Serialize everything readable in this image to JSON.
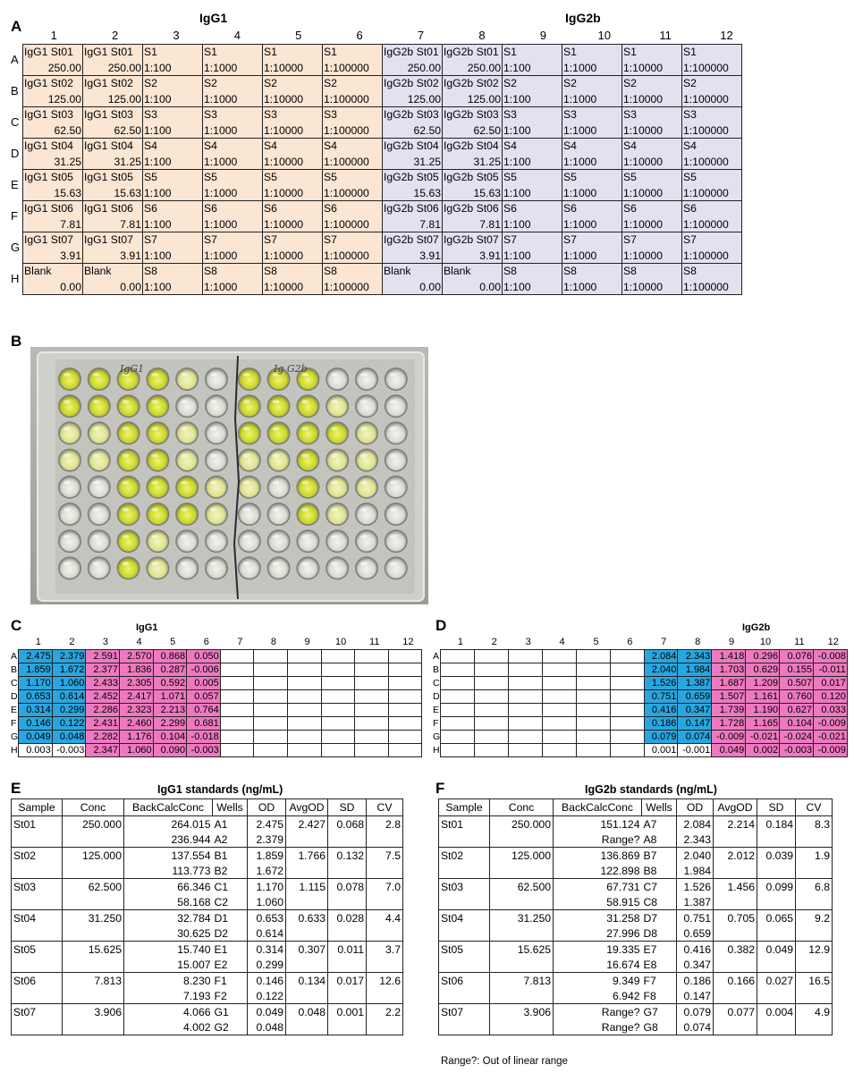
{
  "panel_labels": {
    "A": "A",
    "B": "B",
    "C": "C",
    "D": "D",
    "E": "E",
    "F": "F"
  },
  "plate_layout": {
    "group_left": "IgG1",
    "group_right": "IgG2b",
    "columns": [
      "1",
      "2",
      "3",
      "4",
      "5",
      "6",
      "7",
      "8",
      "9",
      "10",
      "11",
      "12"
    ],
    "rows": [
      {
        "label": "A",
        "cells": [
          [
            "IgG1 St01",
            "250.00"
          ],
          [
            "IgG1 St01",
            "250.00"
          ],
          [
            "S1",
            "1:100"
          ],
          [
            "S1",
            "1:1000"
          ],
          [
            "S1",
            "1:10000"
          ],
          [
            "S1",
            "1:100000"
          ],
          [
            "IgG2b St01",
            "250.00"
          ],
          [
            "IgG2b St01",
            "250.00"
          ],
          [
            "S1",
            "1:100"
          ],
          [
            "S1",
            "1:1000"
          ],
          [
            "S1",
            "1:10000"
          ],
          [
            "S1",
            "1:100000"
          ]
        ]
      },
      {
        "label": "B",
        "cells": [
          [
            "IgG1 St02",
            "125.00"
          ],
          [
            "IgG1 St02",
            "125.00"
          ],
          [
            "S2",
            "1:100"
          ],
          [
            "S2",
            "1:1000"
          ],
          [
            "S2",
            "1:10000"
          ],
          [
            "S2",
            "1:100000"
          ],
          [
            "IgG2b St02",
            "125.00"
          ],
          [
            "IgG2b St02",
            "125.00"
          ],
          [
            "S2",
            "1:100"
          ],
          [
            "S2",
            "1:1000"
          ],
          [
            "S2",
            "1:10000"
          ],
          [
            "S2",
            "1:100000"
          ]
        ]
      },
      {
        "label": "C",
        "cells": [
          [
            "IgG1 St03",
            "62.50"
          ],
          [
            "IgG1 St03",
            "62.50"
          ],
          [
            "S3",
            "1:100"
          ],
          [
            "S3",
            "1:1000"
          ],
          [
            "S3",
            "1:10000"
          ],
          [
            "S3",
            "1:100000"
          ],
          [
            "IgG2b St03",
            "62.50"
          ],
          [
            "IgG2b St03",
            "62.50"
          ],
          [
            "S3",
            "1:100"
          ],
          [
            "S3",
            "1:1000"
          ],
          [
            "S3",
            "1:10000"
          ],
          [
            "S3",
            "1:100000"
          ]
        ]
      },
      {
        "label": "D",
        "cells": [
          [
            "IgG1 St04",
            "31.25"
          ],
          [
            "IgG1 St04",
            "31.25"
          ],
          [
            "S4",
            "1:100"
          ],
          [
            "S4",
            "1:1000"
          ],
          [
            "S4",
            "1:10000"
          ],
          [
            "S4",
            "1:100000"
          ],
          [
            "IgG2b St04",
            "31.25"
          ],
          [
            "IgG2b St04",
            "31.25"
          ],
          [
            "S4",
            "1:100"
          ],
          [
            "S4",
            "1:1000"
          ],
          [
            "S4",
            "1:10000"
          ],
          [
            "S4",
            "1:100000"
          ]
        ]
      },
      {
        "label": "E",
        "cells": [
          [
            "IgG1 St05",
            "15.63"
          ],
          [
            "IgG1 St05",
            "15.63"
          ],
          [
            "S5",
            "1:100"
          ],
          [
            "S5",
            "1:1000"
          ],
          [
            "S5",
            "1:10000"
          ],
          [
            "S5",
            "1:100000"
          ],
          [
            "IgG2b St05",
            "15.63"
          ],
          [
            "IgG2b St05",
            "15.63"
          ],
          [
            "S5",
            "1:100"
          ],
          [
            "S5",
            "1:1000"
          ],
          [
            "S5",
            "1:10000"
          ],
          [
            "S5",
            "1:100000"
          ]
        ]
      },
      {
        "label": "F",
        "cells": [
          [
            "IgG1 St06",
            "7.81"
          ],
          [
            "IgG1 St06",
            "7.81"
          ],
          [
            "S6",
            "1:100"
          ],
          [
            "S6",
            "1:1000"
          ],
          [
            "S6",
            "1:10000"
          ],
          [
            "S6",
            "1:100000"
          ],
          [
            "IgG2b St06",
            "7.81"
          ],
          [
            "IgG2b St06",
            "7.81"
          ],
          [
            "S6",
            "1:100"
          ],
          [
            "S6",
            "1:1000"
          ],
          [
            "S6",
            "1:10000"
          ],
          [
            "S6",
            "1:100000"
          ]
        ]
      },
      {
        "label": "G",
        "cells": [
          [
            "IgG1 St07",
            "3.91"
          ],
          [
            "IgG1 St07",
            "3.91"
          ],
          [
            "S7",
            "1:100"
          ],
          [
            "S7",
            "1:1000"
          ],
          [
            "S7",
            "1:10000"
          ],
          [
            "S7",
            "1:100000"
          ],
          [
            "IgG2b St07",
            "3.91"
          ],
          [
            "IgG2b St07",
            "3.91"
          ],
          [
            "S7",
            "1:100"
          ],
          [
            "S7",
            "1:1000"
          ],
          [
            "S7",
            "1:10000"
          ],
          [
            "S7",
            "1:100000"
          ]
        ]
      },
      {
        "label": "H",
        "cells": [
          [
            "Blank",
            "0.00"
          ],
          [
            "Blank",
            "0.00"
          ],
          [
            "S8",
            "1:100"
          ],
          [
            "S8",
            "1:1000"
          ],
          [
            "S8",
            "1:10000"
          ],
          [
            "S8",
            "1:100000"
          ],
          [
            "Blank",
            "0.00"
          ],
          [
            "Blank",
            "0.00"
          ],
          [
            "S8",
            "1:100"
          ],
          [
            "S8",
            "1:1000"
          ],
          [
            "S8",
            "1:10000"
          ],
          [
            "S8",
            "1:100000"
          ]
        ]
      }
    ],
    "colors": {
      "igg1": "#fbe5d3",
      "igg2b": "#e3e0ef"
    }
  },
  "photo": {
    "label_left": "IgG1",
    "label_right": "Ig G2b",
    "liquid_color": "#d9e83a"
  },
  "od_igg1": {
    "title": "IgG1",
    "columns": [
      "1",
      "2",
      "3",
      "4",
      "5",
      "6",
      "7",
      "8",
      "9",
      "10",
      "11",
      "12"
    ],
    "rows": [
      {
        "label": "A",
        "values": [
          "2.475",
          "2.379",
          "2.591",
          "2.570",
          "0.868",
          "0.050",
          "",
          "",
          "",
          "",
          "",
          ""
        ]
      },
      {
        "label": "B",
        "values": [
          "1.859",
          "1.672",
          "2.377",
          "1.836",
          "0.287",
          "-0.006",
          "",
          "",
          "",
          "",
          "",
          ""
        ]
      },
      {
        "label": "C",
        "values": [
          "1.170",
          "1.060",
          "2.433",
          "2.305",
          "0.592",
          "0.005",
          "",
          "",
          "",
          "",
          "",
          ""
        ]
      },
      {
        "label": "D",
        "values": [
          "0.653",
          "0.614",
          "2.452",
          "2.417",
          "1.071",
          "0.057",
          "",
          "",
          "",
          "",
          "",
          ""
        ]
      },
      {
        "label": "E",
        "values": [
          "0.314",
          "0.299",
          "2.286",
          "2.323",
          "2.213",
          "0.764",
          "",
          "",
          "",
          "",
          "",
          ""
        ]
      },
      {
        "label": "F",
        "values": [
          "0.146",
          "0.122",
          "2.431",
          "2.460",
          "2.299",
          "0.681",
          "",
          "",
          "",
          "",
          "",
          ""
        ]
      },
      {
        "label": "G",
        "values": [
          "0.049",
          "0.048",
          "2.282",
          "1.176",
          "0.104",
          "-0.018",
          "",
          "",
          "",
          "",
          "",
          ""
        ]
      },
      {
        "label": "H",
        "values": [
          "0.003",
          "-0.003",
          "2.347",
          "1.060",
          "0.090",
          "-0.003",
          "",
          "",
          "",
          "",
          "",
          ""
        ]
      }
    ],
    "colors": {
      "standard": "#29a6e0",
      "sample": "#ee79c0"
    }
  },
  "od_igg2b": {
    "title": "IgG2b",
    "columns": [
      "1",
      "2",
      "3",
      "4",
      "5",
      "6",
      "7",
      "8",
      "9",
      "10",
      "11",
      "12"
    ],
    "rows": [
      {
        "label": "A",
        "values": [
          "",
          "",
          "",
          "",
          "",
          "",
          "2.084",
          "2.343",
          "1.418",
          "0.296",
          "0.076",
          "-0.008"
        ]
      },
      {
        "label": "B",
        "values": [
          "",
          "",
          "",
          "",
          "",
          "",
          "2.040",
          "1.984",
          "1.703",
          "0.629",
          "0.155",
          "-0.011"
        ]
      },
      {
        "label": "C",
        "values": [
          "",
          "",
          "",
          "",
          "",
          "",
          "1.526",
          "1.387",
          "1.687",
          "1.209",
          "0.507",
          "0.017"
        ]
      },
      {
        "label": "D",
        "values": [
          "",
          "",
          "",
          "",
          "",
          "",
          "0.751",
          "0.659",
          "1.507",
          "1.161",
          "0.760",
          "0.120"
        ]
      },
      {
        "label": "E",
        "values": [
          "",
          "",
          "",
          "",
          "",
          "",
          "0.416",
          "0.347",
          "1.739",
          "1.190",
          "0.627",
          "0.033"
        ]
      },
      {
        "label": "F",
        "values": [
          "",
          "",
          "",
          "",
          "",
          "",
          "0.186",
          "0.147",
          "1.728",
          "1.165",
          "0.104",
          "-0.009"
        ]
      },
      {
        "label": "G",
        "values": [
          "",
          "",
          "",
          "",
          "",
          "",
          "0.079",
          "0.074",
          "-0.009",
          "-0.021",
          "-0.024",
          "-0.021"
        ]
      },
      {
        "label": "H",
        "values": [
          "",
          "",
          "",
          "",
          "",
          "",
          "0.001",
          "-0.001",
          "0.049",
          "0.002",
          "-0.003",
          "-0.009"
        ]
      }
    ]
  },
  "std_igg1": {
    "title": "IgG1 standards (ng/mL)",
    "headers": [
      "Sample",
      "Conc",
      "BackCalcConc",
      "Wells",
      "OD",
      "AvgOD",
      "SD",
      "CV"
    ],
    "groups": [
      {
        "sample": "St01",
        "conc": "250.000",
        "rows": [
          [
            "264.015",
            "A1",
            "2.475"
          ],
          [
            "236.944",
            "A2",
            "2.379"
          ]
        ],
        "avg": "2.427",
        "sd": "0.068",
        "cv": "2.8"
      },
      {
        "sample": "St02",
        "conc": "125.000",
        "rows": [
          [
            "137.554",
            "B1",
            "1.859"
          ],
          [
            "113.773",
            "B2",
            "1.672"
          ]
        ],
        "avg": "1.766",
        "sd": "0.132",
        "cv": "7.5"
      },
      {
        "sample": "St03",
        "conc": "62.500",
        "rows": [
          [
            "66.346",
            "C1",
            "1.170"
          ],
          [
            "58.168",
            "C2",
            "1.060"
          ]
        ],
        "avg": "1.115",
        "sd": "0.078",
        "cv": "7.0"
      },
      {
        "sample": "St04",
        "conc": "31.250",
        "rows": [
          [
            "32.784",
            "D1",
            "0.653"
          ],
          [
            "30.625",
            "D2",
            "0.614"
          ]
        ],
        "avg": "0.633",
        "sd": "0.028",
        "cv": "4.4"
      },
      {
        "sample": "St05",
        "conc": "15.625",
        "rows": [
          [
            "15.740",
            "E1",
            "0.314"
          ],
          [
            "15.007",
            "E2",
            "0.299"
          ]
        ],
        "avg": "0.307",
        "sd": "0.011",
        "cv": "3.7"
      },
      {
        "sample": "St06",
        "conc": "7.813",
        "rows": [
          [
            "8.230",
            "F1",
            "0.146"
          ],
          [
            "7.193",
            "F2",
            "0.122"
          ]
        ],
        "avg": "0.134",
        "sd": "0.017",
        "cv": "12.6"
      },
      {
        "sample": "St07",
        "conc": "3.906",
        "rows": [
          [
            "4.066",
            "G1",
            "0.049"
          ],
          [
            "4.002",
            "G2",
            "0.048"
          ]
        ],
        "avg": "0.048",
        "sd": "0.001",
        "cv": "2.2"
      }
    ]
  },
  "std_igg2b": {
    "title": "IgG2b standards (ng/mL)",
    "headers": [
      "Sample",
      "Conc",
      "BackCalcConc",
      "Wells",
      "OD",
      "AvgOD",
      "SD",
      "CV"
    ],
    "groups": [
      {
        "sample": "St01",
        "conc": "250.000",
        "rows": [
          [
            "151.124",
            "A7",
            "2.084"
          ],
          [
            "Range?",
            "A8",
            "2.343"
          ]
        ],
        "avg": "2.214",
        "sd": "0.184",
        "cv": "8.3"
      },
      {
        "sample": "St02",
        "conc": "125.000",
        "rows": [
          [
            "136.869",
            "B7",
            "2.040"
          ],
          [
            "122.898",
            "B8",
            "1.984"
          ]
        ],
        "avg": "2.012",
        "sd": "0.039",
        "cv": "1.9"
      },
      {
        "sample": "St03",
        "conc": "62.500",
        "rows": [
          [
            "67.731",
            "C7",
            "1.526"
          ],
          [
            "58.915",
            "C8",
            "1.387"
          ]
        ],
        "avg": "1.456",
        "sd": "0.099",
        "cv": "6.8"
      },
      {
        "sample": "St04",
        "conc": "31.250",
        "rows": [
          [
            "31.258",
            "D7",
            "0.751"
          ],
          [
            "27.996",
            "D8",
            "0.659"
          ]
        ],
        "avg": "0.705",
        "sd": "0.065",
        "cv": "9.2"
      },
      {
        "sample": "St05",
        "conc": "15.625",
        "rows": [
          [
            "19.335",
            "E7",
            "0.416"
          ],
          [
            "16.674",
            "E8",
            "0.347"
          ]
        ],
        "avg": "0.382",
        "sd": "0.049",
        "cv": "12.9"
      },
      {
        "sample": "St06",
        "conc": "7.813",
        "rows": [
          [
            "9.349",
            "F7",
            "0.186"
          ],
          [
            "6.942",
            "F8",
            "0.147"
          ]
        ],
        "avg": "0.166",
        "sd": "0.027",
        "cv": "16.5"
      },
      {
        "sample": "St07",
        "conc": "3.906",
        "rows": [
          [
            "Range?",
            "G7",
            "0.079"
          ],
          [
            "Range?",
            "G8",
            "0.074"
          ]
        ],
        "avg": "0.077",
        "sd": "0.004",
        "cv": "4.9"
      }
    ],
    "note": "Range?: Out of linear range"
  }
}
